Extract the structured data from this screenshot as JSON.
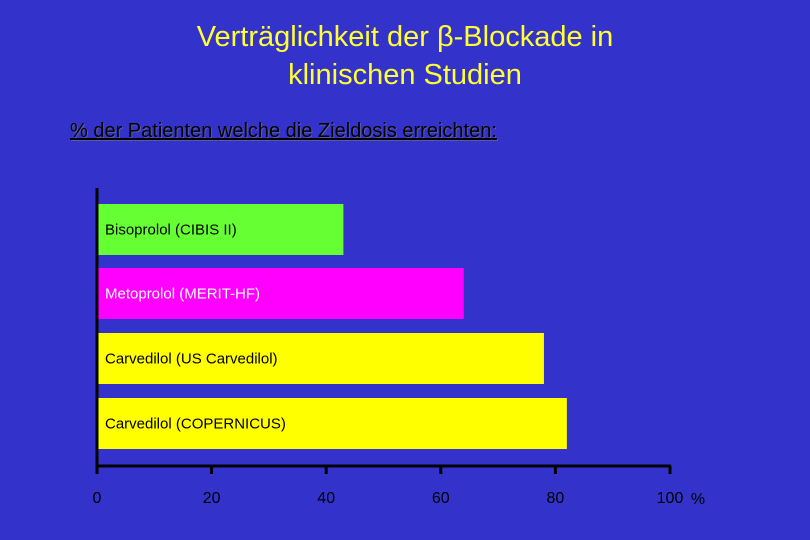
{
  "title": {
    "line1": "Verträglichkeit der β-Blockade in",
    "line2": "klinischen Studien"
  },
  "subtitle": "% der Patienten welche die Zieldosis erreichten:",
  "colors": {
    "background": "#3333CC",
    "title": "#FFFF33",
    "axis": "#000000"
  },
  "chart_data": {
    "type": "bar",
    "orientation": "horizontal",
    "categories": [
      "Bisoprolol (CIBIS II)",
      "Metoprolol (MERIT-HF)",
      "Carvedilol (US Carvedilol)",
      "Carvedilol (COPERNICUS)"
    ],
    "values": [
      43,
      64,
      78,
      82
    ],
    "bar_colors": [
      "#66FF33",
      "#FF00FF",
      "#FFFF00",
      "#FFFF00"
    ],
    "label_colors": [
      "#000000",
      "#FFFFFF",
      "#000000",
      "#000000"
    ],
    "xlim": [
      0,
      100
    ],
    "xticks": [
      0,
      20,
      40,
      60,
      80,
      100
    ],
    "xtick_labels": [
      "0",
      "20",
      "40",
      "60",
      "80",
      "100"
    ],
    "x_unit": "%",
    "grid": false
  }
}
